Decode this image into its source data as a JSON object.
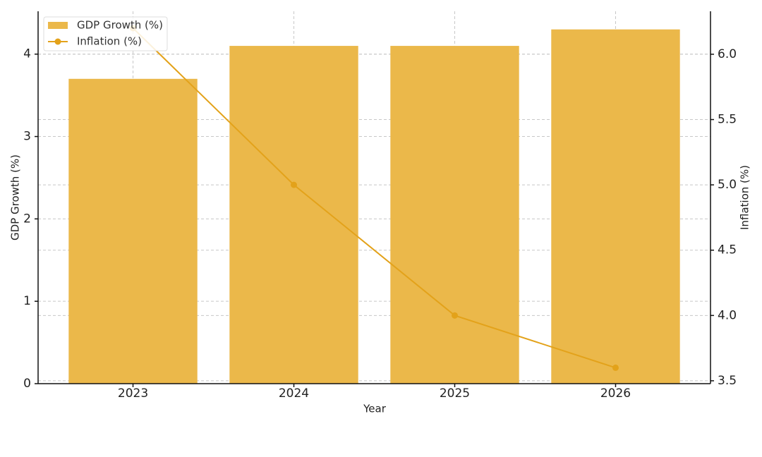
{
  "chart_data": {
    "type": "bar",
    "x_label": "Year",
    "y_label": "GDP Growth (%)",
    "y2_label": "Inflation (%)",
    "categories": [
      "2023",
      "2024",
      "2025",
      "2026"
    ],
    "series": [
      {
        "name": "GDP Growth (%)",
        "type": "bar",
        "color": "#ebb84a",
        "values": [
          3.7,
          4.1,
          4.1,
          4.3
        ]
      },
      {
        "name": "Inflation (%)",
        "type": "line",
        "axis": "y2",
        "color": "#e3a21a",
        "values": [
          6.2,
          5.0,
          4.0,
          3.6
        ]
      }
    ],
    "ylim": [
      0,
      4.52
    ],
    "yticks": [
      0,
      1,
      2,
      3,
      4
    ],
    "y2lim": [
      3.478,
      6.329
    ],
    "y2ticks": [
      3.5,
      {
        "value": 4,
        "label": "4.0"
      },
      4.5,
      {
        "value": 5,
        "label": "5.0"
      },
      5.5,
      {
        "value": 6,
        "label": "6.0"
      }
    ],
    "grid": true,
    "legend": "upper-left"
  }
}
